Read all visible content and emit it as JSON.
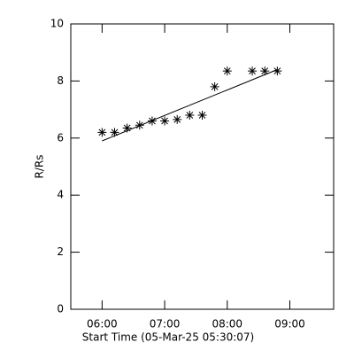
{
  "chart_data": {
    "type": "scatter",
    "xlabel": "Start Time (05-Mar-25 05:30:07)",
    "ylabel": "R/Rs",
    "x": [
      6.0,
      6.2,
      6.4,
      6.6,
      6.8,
      7.0,
      7.2,
      7.4,
      7.6,
      7.8,
      8.0,
      8.4,
      8.6,
      8.8
    ],
    "values": [
      6.2,
      6.2,
      6.35,
      6.45,
      6.6,
      6.6,
      6.65,
      6.8,
      6.8,
      7.8,
      8.35,
      8.35,
      8.35,
      8.35
    ],
    "fit": {
      "x": [
        6.0,
        8.8
      ],
      "values": [
        5.9,
        8.4
      ]
    },
    "color": "#000000",
    "xlim": [
      5.5,
      9.7
    ],
    "xticks": [
      {
        "value": 6,
        "label": "06:00"
      },
      {
        "value": 7,
        "label": "07:00"
      },
      {
        "value": 8,
        "label": "08:00"
      },
      {
        "value": 9,
        "label": "09:00"
      }
    ],
    "ylim": [
      0,
      10
    ],
    "yticks": [
      0,
      2,
      4,
      6,
      8,
      10
    ]
  }
}
